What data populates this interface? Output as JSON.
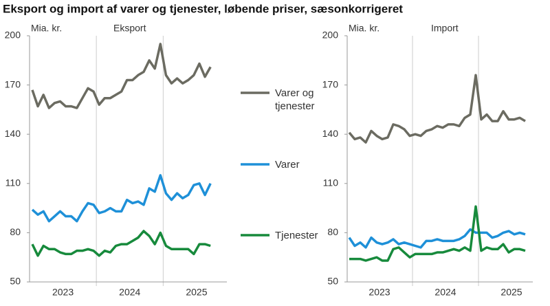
{
  "title": "Eksport og import af varer og tjenester, løbende priser, sæsonkorrigeret",
  "chart_data": [
    {
      "type": "line",
      "subtitle": "Eksport",
      "y_label": "Mia. kr.",
      "x_labels": [
        "2023",
        "2024",
        "2025"
      ],
      "ylim": [
        50,
        200
      ],
      "yticks": [
        50,
        80,
        110,
        140,
        170,
        200
      ],
      "series": [
        {
          "name": "Varer og tjenester",
          "color": "#6b6b61",
          "values": [
            167,
            157,
            164,
            156,
            159,
            160,
            157,
            157,
            156,
            162,
            168,
            166,
            158,
            162,
            162,
            164,
            166,
            173,
            173,
            176,
            178,
            185,
            180,
            195,
            176,
            171,
            174,
            171,
            173,
            176,
            183,
            175,
            181
          ]
        },
        {
          "name": "Varer",
          "color": "#1e90d8",
          "values": [
            94,
            91,
            93,
            87,
            90,
            93,
            90,
            90,
            87,
            93,
            98,
            97,
            92,
            93,
            95,
            93,
            93,
            100,
            98,
            99,
            97,
            107,
            105,
            115,
            104,
            100,
            104,
            101,
            103,
            109,
            110,
            103,
            110
          ]
        },
        {
          "name": "Tjenester",
          "color": "#178a3c",
          "values": [
            73,
            66,
            72,
            70,
            70,
            68,
            67,
            67,
            69,
            69,
            70,
            69,
            66,
            69,
            68,
            72,
            73,
            73,
            75,
            77,
            81,
            78,
            73,
            80,
            72,
            70,
            70,
            70,
            70,
            67,
            73,
            73,
            72
          ]
        }
      ]
    },
    {
      "type": "line",
      "subtitle": "Import",
      "y_label": "Mia. kr.",
      "x_labels": [
        "2023",
        "2024",
        "2025"
      ],
      "ylim": [
        50,
        200
      ],
      "yticks": [
        50,
        80,
        110,
        140,
        170,
        200
      ],
      "series": [
        {
          "name": "Varer og tjenester",
          "color": "#6b6b61",
          "values": [
            141,
            137,
            138,
            135,
            142,
            139,
            137,
            138,
            146,
            145,
            143,
            139,
            140,
            139,
            142,
            143,
            145,
            144,
            146,
            146,
            145,
            150,
            152,
            176,
            149,
            152,
            148,
            148,
            154,
            149,
            149,
            150,
            148
          ]
        },
        {
          "name": "Varer",
          "color": "#1e90d8",
          "values": [
            77,
            72,
            74,
            71,
            77,
            74,
            73,
            74,
            76,
            73,
            74,
            73,
            72,
            71,
            75,
            75,
            76,
            75,
            75,
            75,
            76,
            78,
            82,
            80,
            80,
            80,
            77,
            78,
            80,
            81,
            79,
            80,
            79
          ]
        },
        {
          "name": "Tjenester",
          "color": "#178a3c",
          "values": [
            64,
            64,
            64,
            63,
            64,
            65,
            63,
            63,
            70,
            71,
            68,
            65,
            67,
            67,
            67,
            67,
            68,
            68,
            69,
            70,
            69,
            71,
            69,
            96,
            69,
            71,
            70,
            70,
            73,
            68,
            70,
            70,
            69
          ]
        }
      ]
    }
  ]
}
